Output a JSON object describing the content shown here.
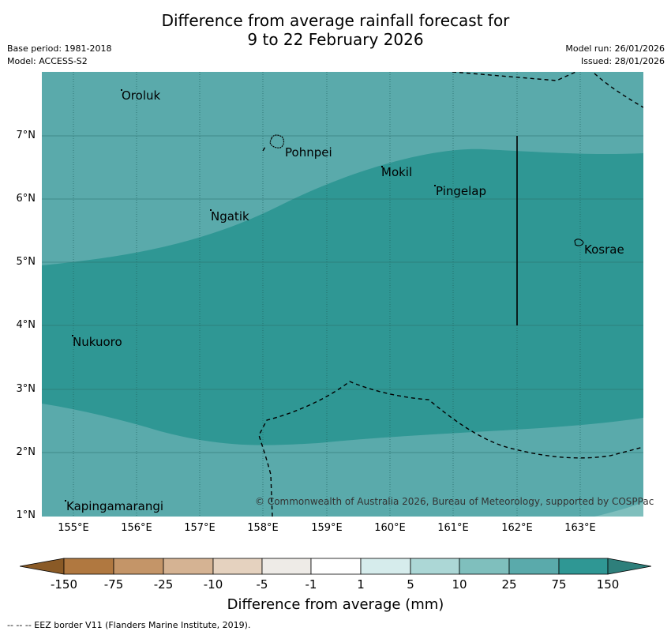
{
  "title": {
    "line1": "Difference from average rainfall forecast for",
    "line2": "9 to 22 February 2026"
  },
  "meta": {
    "base_period": "Base period: 1981-2018",
    "model": "Model: ACCESS-S2",
    "model_run": "Model run: 26/01/2026",
    "issued": "Issued: 28/01/2026"
  },
  "places": {
    "oroluk": "Oroluk",
    "pohnpei": "Pohnpei",
    "mokil": "Mokil",
    "pingelap": "Pingelap",
    "ngatik": "Ngatik",
    "kosrae": "Kosrae",
    "nukuoro": "Nukuoro",
    "kapingamarangi": "Kapingamarangi"
  },
  "latitudes": [
    "7°N",
    "6°N",
    "5°N",
    "4°N",
    "3°N",
    "2°N",
    "1°N"
  ],
  "longitudes": [
    "155°E",
    "156°E",
    "157°E",
    "158°E",
    "159°E",
    "160°E",
    "161°E",
    "162°E",
    "163°E"
  ],
  "copyright": "© Commonwealth of Australia 2026, Bureau of Meteorology, supported by COSPPac",
  "colorbar": {
    "ticks": [
      "-150",
      "-75",
      "-25",
      "-10",
      "-5",
      "-1",
      "1",
      "5",
      "10",
      "25",
      "75",
      "150"
    ],
    "colors": {
      "below_min": "#8a5a26",
      "c1": "#b07840",
      "c2": "#c49568",
      "c3": "#d5b393",
      "c4": "#e5d2bf",
      "c5": "#eeebe7",
      "c6": "#ffffff",
      "c7": "#d6ecec",
      "c8": "#acd7d6",
      "c9": "#7fbfbd",
      "c10": "#5aaaab",
      "c11": "#2f9794",
      "above_max": "#2e7f7b"
    },
    "title": "Difference from average (mm)"
  },
  "footer": "--  --  -- EEZ border V11 (Flanders Marine Institute, 2019)."
}
